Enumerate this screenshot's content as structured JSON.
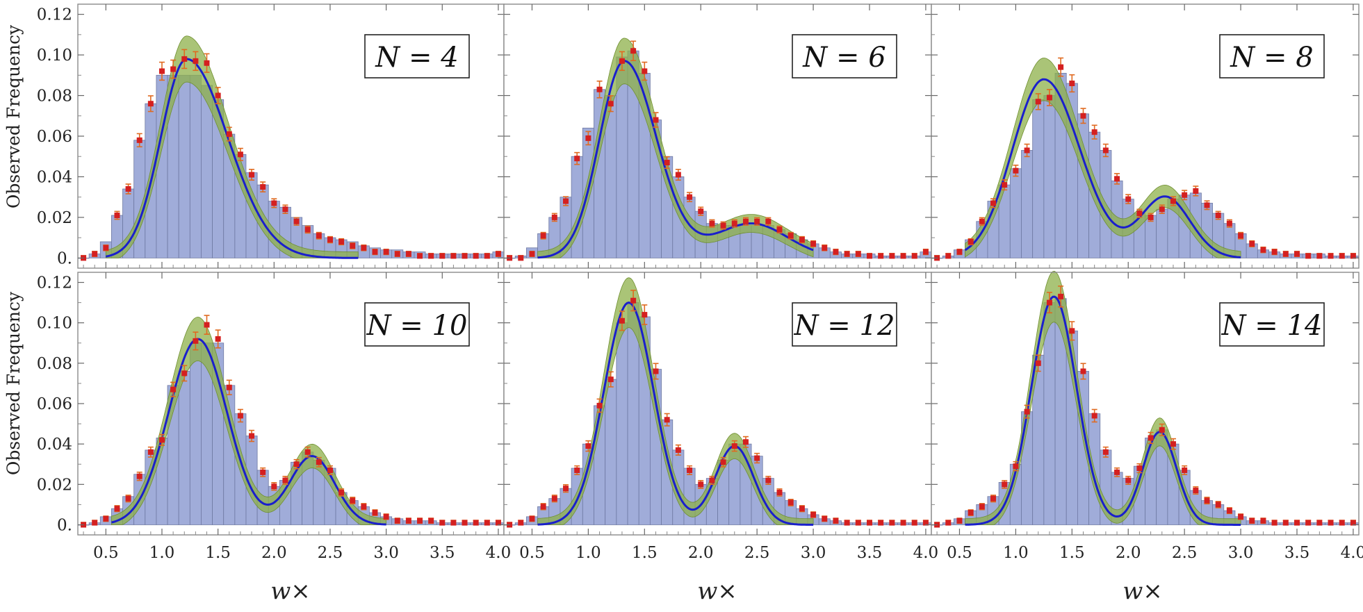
{
  "figure": {
    "ylabel": "Observed Frequency",
    "xlabel": "w×",
    "x_ticks": [
      "0.5",
      "1.0",
      "1.5",
      "2.0",
      "2.5",
      "3.0",
      "3.5",
      "4.0"
    ],
    "y_ticks": [
      "0.",
      "0.02",
      "0.04",
      "0.06",
      "0.08",
      "0.10",
      "0.12"
    ]
  },
  "colors": {
    "histogram": "#98a5d6",
    "histogram_edge": "#6f7aa3",
    "band": "#8db04a",
    "fit_line": "#1a1fcc",
    "data_points": "#d42020"
  },
  "chart_data": [
    {
      "type": "bar",
      "label": "N = 4",
      "xlim": [
        0.25,
        4.05
      ],
      "ylim": [
        -0.005,
        0.125
      ],
      "x": [
        0.3,
        0.4,
        0.5,
        0.6,
        0.7,
        0.8,
        0.9,
        1.0,
        1.1,
        1.2,
        1.3,
        1.4,
        1.5,
        1.6,
        1.7,
        1.8,
        1.9,
        2.0,
        2.1,
        2.2,
        2.3,
        2.4,
        2.5,
        2.6,
        2.7,
        2.8,
        2.9,
        3.0,
        3.1,
        3.2,
        3.3,
        3.4,
        3.5,
        3.6,
        3.7,
        3.8,
        3.9,
        4.0
      ],
      "values": [
        0.0,
        0.002,
        0.008,
        0.021,
        0.034,
        0.058,
        0.076,
        0.09,
        0.09,
        0.09,
        0.09,
        0.085,
        0.078,
        0.061,
        0.051,
        0.042,
        0.036,
        0.028,
        0.025,
        0.02,
        0.016,
        0.012,
        0.01,
        0.009,
        0.008,
        0.006,
        0.005,
        0.004,
        0.004,
        0.003,
        0.003,
        0.002,
        0.002,
        0.002,
        0.002,
        0.002,
        0.002,
        0.003
      ],
      "points": [
        0.0,
        0.002,
        0.005,
        0.021,
        0.034,
        0.058,
        0.076,
        0.092,
        0.093,
        0.098,
        0.097,
        0.096,
        0.08,
        0.061,
        0.051,
        0.041,
        0.035,
        0.027,
        0.024,
        0.018,
        0.014,
        0.011,
        0.009,
        0.008,
        0.006,
        0.005,
        0.003,
        0.003,
        0.002,
        0.002,
        0.001,
        0.001,
        0.001,
        0.001,
        0.001,
        0.001,
        0.001,
        0.002
      ],
      "fit_range": [
        0.5,
        2.75
      ],
      "peaks": [
        {
          "mu": 1.22,
          "sigma": 0.23,
          "a": 0.098,
          "tail": 0.6
        }
      ]
    },
    {
      "type": "bar",
      "label": "N = 6",
      "xlim": [
        0.25,
        4.05
      ],
      "ylim": [
        -0.005,
        0.125
      ],
      "x": [
        0.3,
        0.4,
        0.5,
        0.6,
        0.7,
        0.8,
        0.9,
        1.0,
        1.1,
        1.2,
        1.3,
        1.4,
        1.5,
        1.6,
        1.7,
        1.8,
        1.9,
        2.0,
        2.1,
        2.2,
        2.3,
        2.4,
        2.5,
        2.6,
        2.7,
        2.8,
        2.9,
        3.0,
        3.1,
        3.2,
        3.3,
        3.4,
        3.5,
        3.6,
        3.7,
        3.8,
        3.9,
        4.0
      ],
      "values": [
        0.0,
        0.001,
        0.005,
        0.012,
        0.02,
        0.03,
        0.05,
        0.064,
        0.083,
        0.08,
        0.099,
        0.102,
        0.091,
        0.068,
        0.05,
        0.04,
        0.03,
        0.023,
        0.017,
        0.016,
        0.016,
        0.016,
        0.016,
        0.016,
        0.014,
        0.012,
        0.009,
        0.007,
        0.005,
        0.003,
        0.002,
        0.002,
        0.002,
        0.001,
        0.001,
        0.001,
        0.001,
        0.003
      ],
      "points": [
        0.0,
        0.0,
        0.002,
        0.011,
        0.02,
        0.028,
        0.049,
        0.059,
        0.083,
        0.076,
        0.097,
        0.102,
        0.092,
        0.068,
        0.047,
        0.041,
        0.03,
        0.023,
        0.017,
        0.016,
        0.017,
        0.018,
        0.018,
        0.018,
        0.014,
        0.011,
        0.009,
        0.007,
        0.005,
        0.003,
        0.002,
        0.002,
        0.001,
        0.001,
        0.001,
        0.001,
        0.001,
        0.003
      ],
      "fit_range": [
        0.55,
        3.0
      ],
      "peaks": [
        {
          "mu": 1.32,
          "sigma": 0.22,
          "a": 0.097,
          "tail": 0.3
        },
        {
          "mu": 2.45,
          "sigma": 0.32,
          "a": 0.017,
          "tail": 0
        }
      ]
    },
    {
      "type": "bar",
      "label": "N = 8",
      "xlim": [
        0.25,
        4.05
      ],
      "ylim": [
        -0.005,
        0.125
      ],
      "x": [
        0.3,
        0.4,
        0.5,
        0.6,
        0.7,
        0.8,
        0.9,
        1.0,
        1.1,
        1.2,
        1.3,
        1.4,
        1.5,
        1.6,
        1.7,
        1.8,
        1.9,
        2.0,
        2.1,
        2.2,
        2.3,
        2.4,
        2.5,
        2.6,
        2.7,
        2.8,
        2.9,
        3.0,
        3.1,
        3.2,
        3.3,
        3.4,
        3.5,
        3.6,
        3.7,
        3.8,
        3.9,
        4.0
      ],
      "values": [
        0.0,
        0.001,
        0.004,
        0.009,
        0.018,
        0.028,
        0.036,
        0.044,
        0.053,
        0.078,
        0.08,
        0.091,
        0.086,
        0.071,
        0.062,
        0.053,
        0.038,
        0.029,
        0.022,
        0.021,
        0.024,
        0.029,
        0.031,
        0.032,
        0.027,
        0.022,
        0.017,
        0.012,
        0.007,
        0.004,
        0.003,
        0.002,
        0.002,
        0.002,
        0.002,
        0.001,
        0.001,
        0.001
      ],
      "points": [
        0.0,
        0.001,
        0.003,
        0.008,
        0.018,
        0.027,
        0.036,
        0.043,
        0.053,
        0.077,
        0.079,
        0.094,
        0.086,
        0.07,
        0.062,
        0.053,
        0.039,
        0.029,
        0.022,
        0.02,
        0.024,
        0.028,
        0.031,
        0.033,
        0.026,
        0.021,
        0.017,
        0.011,
        0.007,
        0.004,
        0.003,
        0.002,
        0.002,
        0.001,
        0.001,
        0.001,
        0.001,
        0.001
      ],
      "fit_range": [
        0.55,
        3.0
      ],
      "peaks": [
        {
          "mu": 1.25,
          "sigma": 0.28,
          "a": 0.088,
          "tail": 0.15
        },
        {
          "mu": 2.33,
          "sigma": 0.22,
          "a": 0.03,
          "tail": 0
        }
      ]
    },
    {
      "type": "bar",
      "label": "N = 10",
      "xlim": [
        0.25,
        4.05
      ],
      "ylim": [
        -0.005,
        0.125
      ],
      "x": [
        0.3,
        0.4,
        0.5,
        0.6,
        0.7,
        0.8,
        0.9,
        1.0,
        1.1,
        1.2,
        1.3,
        1.4,
        1.5,
        1.6,
        1.7,
        1.8,
        1.9,
        2.0,
        2.1,
        2.2,
        2.3,
        2.4,
        2.5,
        2.6,
        2.7,
        2.8,
        2.9,
        3.0,
        3.1,
        3.2,
        3.3,
        3.4,
        3.5,
        3.6,
        3.7,
        3.8,
        3.9,
        4.0
      ],
      "values": [
        0.0,
        0.001,
        0.004,
        0.008,
        0.014,
        0.025,
        0.037,
        0.043,
        0.069,
        0.076,
        0.09,
        0.09,
        0.09,
        0.069,
        0.055,
        0.044,
        0.027,
        0.019,
        0.022,
        0.031,
        0.036,
        0.032,
        0.028,
        0.016,
        0.012,
        0.009,
        0.006,
        0.004,
        0.003,
        0.002,
        0.002,
        0.002,
        0.001,
        0.001,
        0.001,
        0.001,
        0.001,
        0.001
      ],
      "points": [
        0.0,
        0.001,
        0.003,
        0.008,
        0.013,
        0.024,
        0.036,
        0.042,
        0.067,
        0.075,
        0.091,
        0.099,
        0.092,
        0.068,
        0.054,
        0.044,
        0.026,
        0.019,
        0.022,
        0.03,
        0.036,
        0.031,
        0.027,
        0.016,
        0.012,
        0.009,
        0.006,
        0.004,
        0.002,
        0.002,
        0.002,
        0.002,
        0.001,
        0.001,
        0.001,
        0.001,
        0.001,
        0.001
      ],
      "fit_range": [
        0.55,
        3.0
      ],
      "peaks": [
        {
          "mu": 1.32,
          "sigma": 0.26,
          "a": 0.092,
          "tail": 0
        },
        {
          "mu": 2.34,
          "sigma": 0.2,
          "a": 0.034,
          "tail": 0
        }
      ]
    },
    {
      "type": "bar",
      "label": "N = 12",
      "xlim": [
        0.25,
        4.05
      ],
      "ylim": [
        -0.005,
        0.125
      ],
      "x": [
        0.3,
        0.4,
        0.5,
        0.6,
        0.7,
        0.8,
        0.9,
        1.0,
        1.1,
        1.2,
        1.3,
        1.4,
        1.5,
        1.6,
        1.7,
        1.8,
        1.9,
        2.0,
        2.1,
        2.2,
        2.3,
        2.4,
        2.5,
        2.6,
        2.7,
        2.8,
        2.9,
        3.0,
        3.1,
        3.2,
        3.3,
        3.4,
        3.5,
        3.6,
        3.7,
        3.8,
        3.9,
        4.0
      ],
      "values": [
        0.0,
        0.001,
        0.004,
        0.009,
        0.013,
        0.018,
        0.028,
        0.04,
        0.059,
        0.072,
        0.1,
        0.11,
        0.103,
        0.077,
        0.052,
        0.037,
        0.028,
        0.02,
        0.023,
        0.032,
        0.04,
        0.04,
        0.034,
        0.023,
        0.016,
        0.012,
        0.008,
        0.005,
        0.003,
        0.002,
        0.001,
        0.001,
        0.001,
        0.001,
        0.001,
        0.001,
        0.001,
        0.001
      ],
      "points": [
        0.0,
        0.001,
        0.003,
        0.009,
        0.013,
        0.018,
        0.027,
        0.039,
        0.059,
        0.072,
        0.101,
        0.111,
        0.104,
        0.076,
        0.052,
        0.037,
        0.027,
        0.02,
        0.022,
        0.031,
        0.039,
        0.041,
        0.033,
        0.022,
        0.016,
        0.011,
        0.008,
        0.005,
        0.003,
        0.002,
        0.001,
        0.001,
        0.001,
        0.001,
        0.001,
        0.001,
        0.001,
        0.001
      ],
      "fit_range": [
        0.55,
        3.0
      ],
      "peaks": [
        {
          "mu": 1.36,
          "sigma": 0.22,
          "a": 0.11,
          "tail": 0
        },
        {
          "mu": 2.3,
          "sigma": 0.17,
          "a": 0.039,
          "tail": 0
        }
      ]
    },
    {
      "type": "bar",
      "label": "N = 14",
      "xlim": [
        0.25,
        4.05
      ],
      "ylim": [
        -0.005,
        0.125
      ],
      "x": [
        0.3,
        0.4,
        0.5,
        0.6,
        0.7,
        0.8,
        0.9,
        1.0,
        1.1,
        1.2,
        1.3,
        1.4,
        1.5,
        1.6,
        1.7,
        1.8,
        1.9,
        2.0,
        2.1,
        2.2,
        2.3,
        2.4,
        2.5,
        2.6,
        2.7,
        2.8,
        2.9,
        3.0,
        3.1,
        3.2,
        3.3,
        3.4,
        3.5,
        3.6,
        3.7,
        3.8,
        3.9,
        4.0
      ],
      "values": [
        0.0,
        0.001,
        0.003,
        0.007,
        0.01,
        0.014,
        0.021,
        0.03,
        0.056,
        0.084,
        0.11,
        0.112,
        0.096,
        0.076,
        0.055,
        0.037,
        0.026,
        0.023,
        0.029,
        0.043,
        0.047,
        0.04,
        0.027,
        0.017,
        0.012,
        0.01,
        0.007,
        0.004,
        0.002,
        0.002,
        0.001,
        0.001,
        0.001,
        0.001,
        0.001,
        0.001,
        0.001,
        0.001
      ],
      "points": [
        0.0,
        0.001,
        0.002,
        0.006,
        0.009,
        0.013,
        0.02,
        0.029,
        0.056,
        0.08,
        0.11,
        0.113,
        0.096,
        0.076,
        0.054,
        0.036,
        0.026,
        0.022,
        0.028,
        0.043,
        0.047,
        0.04,
        0.027,
        0.017,
        0.012,
        0.01,
        0.007,
        0.004,
        0.002,
        0.002,
        0.001,
        0.001,
        0.001,
        0.001,
        0.001,
        0.001,
        0.001,
        0.001
      ],
      "fit_range": [
        0.55,
        3.0
      ],
      "peaks": [
        {
          "mu": 1.34,
          "sigma": 0.2,
          "a": 0.113,
          "tail": 0
        },
        {
          "mu": 2.28,
          "sigma": 0.15,
          "a": 0.046,
          "tail": 0
        }
      ]
    }
  ]
}
